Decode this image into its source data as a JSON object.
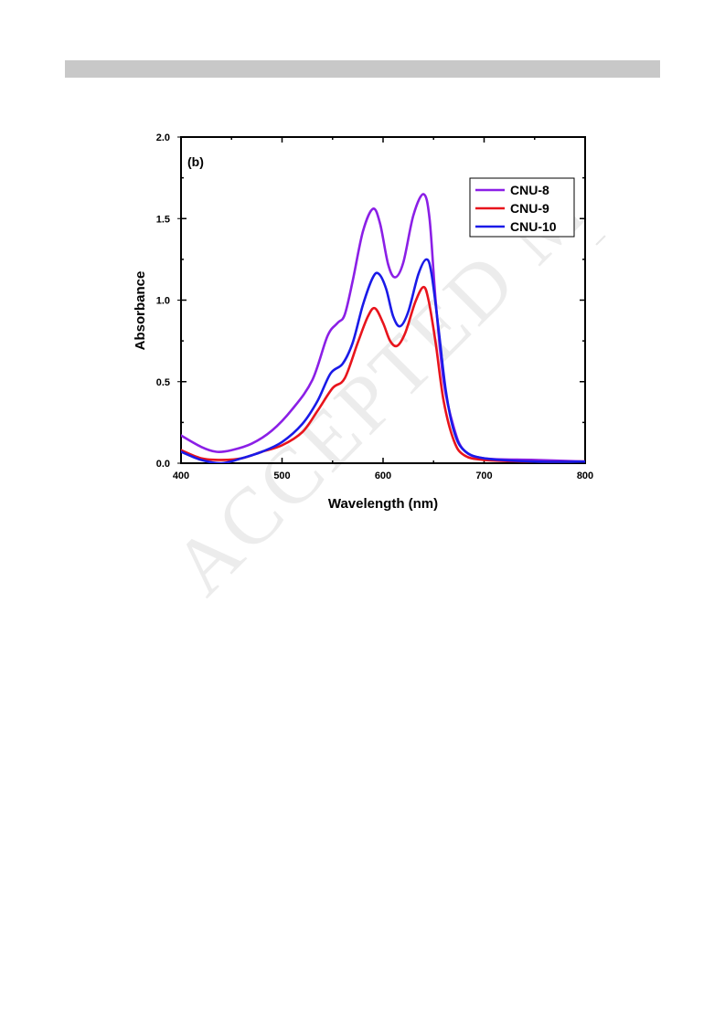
{
  "page": {
    "header_bar_color": "#c8c8c8",
    "watermark": "ACCEPTED MANUSCRIPT"
  },
  "chart_data": {
    "type": "line",
    "title": "",
    "panel_label": "(b)",
    "xlabel": "Wavelength (nm)",
    "ylabel": "Absorbance",
    "xlim": [
      400,
      800
    ],
    "ylim": [
      0.0,
      2.0
    ],
    "x_ticks": [
      400,
      500,
      600,
      700,
      800
    ],
    "x_tick_labels": [
      "400",
      "500",
      "600",
      "700",
      "800"
    ],
    "y_ticks": [
      0.0,
      0.5,
      1.0,
      1.5,
      2.0
    ],
    "y_tick_labels": [
      "0.0",
      "0.5",
      "1.0",
      "1.5",
      "2.0"
    ],
    "grid": false,
    "legend_position": "top-right",
    "series": [
      {
        "name": "CNU-8",
        "color": "#8b1fe6",
        "points": [
          [
            400,
            0.17
          ],
          [
            420,
            0.1
          ],
          [
            435,
            0.07
          ],
          [
            450,
            0.08
          ],
          [
            470,
            0.12
          ],
          [
            490,
            0.2
          ],
          [
            510,
            0.33
          ],
          [
            530,
            0.51
          ],
          [
            545,
            0.78
          ],
          [
            555,
            0.86
          ],
          [
            562,
            0.91
          ],
          [
            570,
            1.12
          ],
          [
            580,
            1.42
          ],
          [
            590,
            1.56
          ],
          [
            597,
            1.47
          ],
          [
            605,
            1.22
          ],
          [
            612,
            1.14
          ],
          [
            620,
            1.23
          ],
          [
            630,
            1.52
          ],
          [
            640,
            1.65
          ],
          [
            646,
            1.5
          ],
          [
            652,
            1.0
          ],
          [
            660,
            0.5
          ],
          [
            670,
            0.22
          ],
          [
            680,
            0.08
          ],
          [
            700,
            0.03
          ],
          [
            750,
            0.02
          ],
          [
            800,
            0.01
          ]
        ]
      },
      {
        "name": "CNU-9",
        "color": "#e8141c",
        "points": [
          [
            400,
            0.08
          ],
          [
            420,
            0.03
          ],
          [
            440,
            0.02
          ],
          [
            460,
            0.03
          ],
          [
            480,
            0.07
          ],
          [
            500,
            0.11
          ],
          [
            520,
            0.19
          ],
          [
            535,
            0.32
          ],
          [
            550,
            0.46
          ],
          [
            562,
            0.52
          ],
          [
            575,
            0.74
          ],
          [
            585,
            0.9
          ],
          [
            592,
            0.95
          ],
          [
            600,
            0.86
          ],
          [
            607,
            0.75
          ],
          [
            614,
            0.72
          ],
          [
            622,
            0.8
          ],
          [
            632,
            0.99
          ],
          [
            640,
            1.08
          ],
          [
            645,
            1.0
          ],
          [
            652,
            0.74
          ],
          [
            660,
            0.38
          ],
          [
            670,
            0.14
          ],
          [
            680,
            0.05
          ],
          [
            700,
            0.02
          ],
          [
            750,
            0.01
          ],
          [
            800,
            0.01
          ]
        ]
      },
      {
        "name": "CNU-10",
        "color": "#1a1ae8",
        "points": [
          [
            400,
            0.07
          ],
          [
            420,
            0.02
          ],
          [
            440,
            0.0
          ],
          [
            460,
            0.03
          ],
          [
            480,
            0.07
          ],
          [
            500,
            0.13
          ],
          [
            520,
            0.24
          ],
          [
            535,
            0.38
          ],
          [
            548,
            0.55
          ],
          [
            560,
            0.61
          ],
          [
            570,
            0.74
          ],
          [
            580,
            0.97
          ],
          [
            590,
            1.14
          ],
          [
            596,
            1.16
          ],
          [
            603,
            1.07
          ],
          [
            610,
            0.9
          ],
          [
            617,
            0.84
          ],
          [
            625,
            0.93
          ],
          [
            635,
            1.16
          ],
          [
            643,
            1.25
          ],
          [
            648,
            1.16
          ],
          [
            655,
            0.82
          ],
          [
            662,
            0.45
          ],
          [
            670,
            0.2
          ],
          [
            680,
            0.08
          ],
          [
            700,
            0.03
          ],
          [
            750,
            0.01
          ],
          [
            800,
            0.01
          ]
        ]
      }
    ]
  }
}
